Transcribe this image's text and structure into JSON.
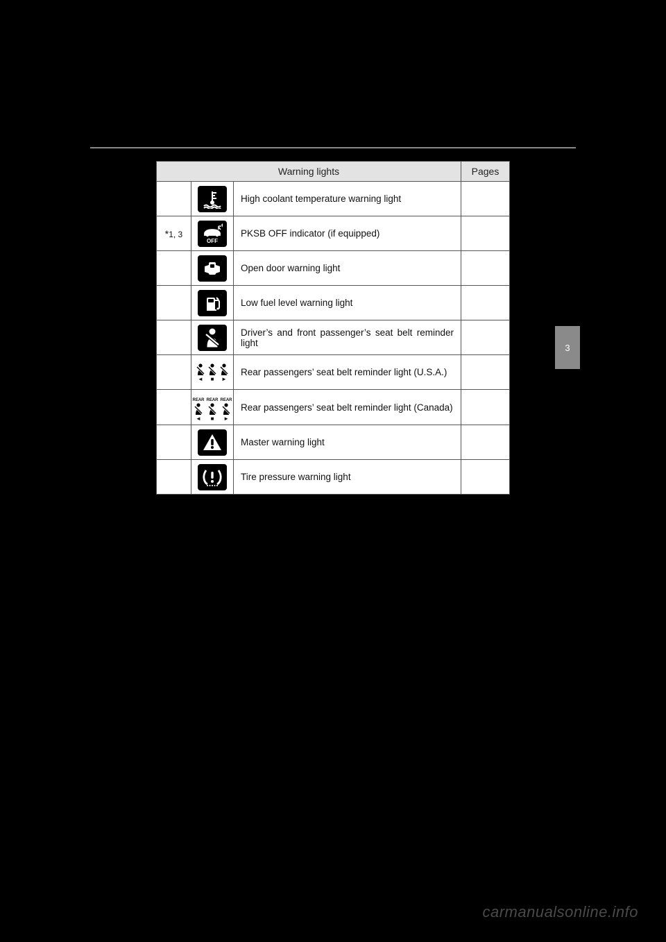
{
  "header": {
    "col_warning": "Warning lights",
    "col_pages": "Pages"
  },
  "rows": [
    {
      "note": "",
      "icon": "coolant-temp",
      "desc": "High coolant temperature warning light",
      "page": ""
    },
    {
      "note": "*1, 3",
      "icon": "pksb-off",
      "desc": "PKSB OFF indicator (if equipped)",
      "page": ""
    },
    {
      "note": "",
      "icon": "open-door",
      "desc": "Open door warning light",
      "page": ""
    },
    {
      "note": "",
      "icon": "low-fuel",
      "desc": "Low fuel level warning light",
      "page": ""
    },
    {
      "note": "",
      "icon": "seatbelt-front",
      "desc": "Driver’s and front passenger’s seat belt reminder light",
      "desc_justify": true,
      "page": ""
    },
    {
      "note": "",
      "icon": "seatbelt-rear-us",
      "desc": "Rear passengers’ seat belt reminder light (U.S.A.)",
      "page": ""
    },
    {
      "note": "",
      "icon": "seatbelt-rear-ca",
      "desc": "Rear passengers’ seat belt reminder light (Canada)",
      "page": ""
    },
    {
      "note": "",
      "icon": "master-warning",
      "desc": "Master warning light",
      "page": ""
    },
    {
      "note": "",
      "icon": "tire-pressure",
      "desc": "Tire pressure warning light",
      "page": ""
    }
  ],
  "sidetab": "3",
  "watermark": "carmanualsonline.info",
  "pksb_off_text": "OFF",
  "rear_label": "REAR",
  "colors": {
    "page_bg": "#000000",
    "table_bg": "#ffffff",
    "header_bg": "#e3e3e3",
    "border": "#555555",
    "icon_bg": "#000000",
    "icon_fg": "#ffffff",
    "sidetab_bg": "#8a8a8a",
    "watermark": "#4a4a4a"
  }
}
